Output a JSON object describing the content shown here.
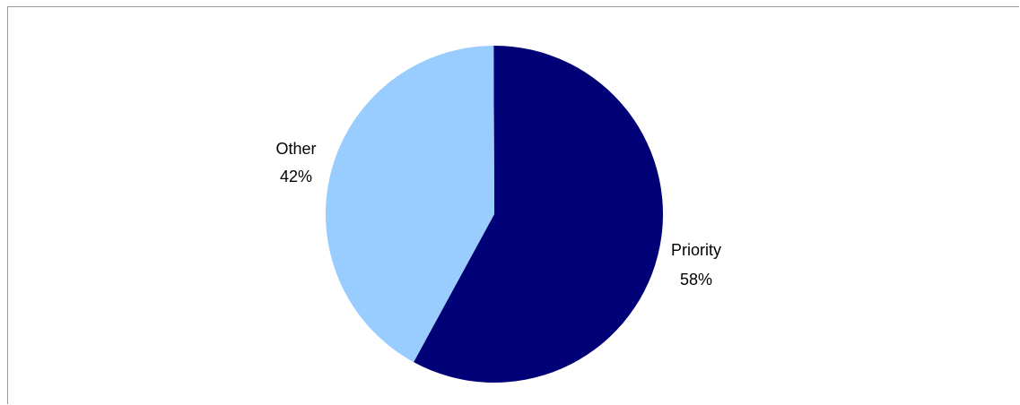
{
  "chart_data": {
    "type": "pie",
    "slices": [
      {
        "label": "Priority",
        "percent_label": "58%",
        "value": 58,
        "color": "#000077"
      },
      {
        "label": "Other",
        "percent_label": "42%",
        "value": 42,
        "color": "#99ccff"
      }
    ],
    "title": "",
    "legend": "none"
  }
}
